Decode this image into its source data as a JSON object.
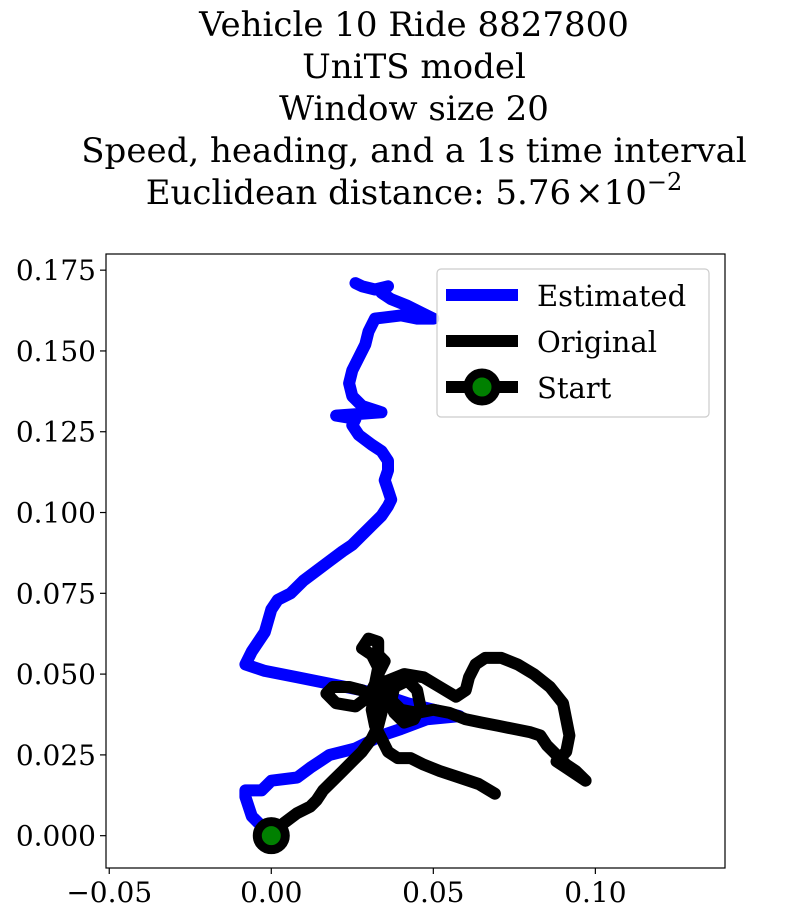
{
  "chart_data": {
    "type": "line",
    "title_lines": [
      "Vehicle 10 Ride 8827800",
      "UniTS model",
      "Window size 20",
      "Speed, heading, and a 1s time interval"
    ],
    "title_metric_label": "Euclidean distance: 5.76",
    "title_metric_times": "×10",
    "title_metric_exponent": "−2",
    "xlabel": "",
    "ylabel": "",
    "xlim": [
      -0.051,
      0.14
    ],
    "ylim": [
      -0.01,
      0.18
    ],
    "x_ticks": [
      -0.05,
      0.0,
      0.05,
      0.1
    ],
    "x_tick_labels": [
      "−0.05",
      "0.00",
      "0.05",
      "0.10"
    ],
    "y_ticks": [
      0.0,
      0.025,
      0.05,
      0.075,
      0.1,
      0.125,
      0.15,
      0.175
    ],
    "y_tick_labels": [
      "0.000",
      "0.025",
      "0.050",
      "0.075",
      "0.100",
      "0.125",
      "0.150",
      "0.175"
    ],
    "grid": false,
    "legend_position": "top-right",
    "series": [
      {
        "name": "Estimated",
        "color": "#0000ff",
        "points": [
          [
            0.0,
            0.0
          ],
          [
            -0.006,
            0.006
          ],
          [
            -0.008,
            0.012
          ],
          [
            -0.008,
            0.014
          ],
          [
            -0.003,
            0.014
          ],
          [
            0.0,
            0.017
          ],
          [
            0.008,
            0.018
          ],
          [
            0.012,
            0.021
          ],
          [
            0.015,
            0.023
          ],
          [
            0.018,
            0.025
          ],
          [
            0.022,
            0.026
          ],
          [
            0.026,
            0.027
          ],
          [
            0.03,
            0.029
          ],
          [
            0.034,
            0.031
          ],
          [
            0.04,
            0.033
          ],
          [
            0.048,
            0.036
          ],
          [
            0.058,
            0.037
          ],
          [
            0.05,
            0.039
          ],
          [
            0.042,
            0.041
          ],
          [
            0.036,
            0.043
          ],
          [
            0.028,
            0.045
          ],
          [
            0.018,
            0.047
          ],
          [
            0.008,
            0.049
          ],
          [
            -0.002,
            0.051
          ],
          [
            -0.008,
            0.053
          ],
          [
            -0.006,
            0.057
          ],
          [
            -0.002,
            0.063
          ],
          [
            0.0,
            0.07
          ],
          [
            0.002,
            0.073
          ],
          [
            0.006,
            0.075
          ],
          [
            0.01,
            0.079
          ],
          [
            0.014,
            0.082
          ],
          [
            0.018,
            0.085
          ],
          [
            0.022,
            0.088
          ],
          [
            0.025,
            0.09
          ],
          [
            0.028,
            0.093
          ],
          [
            0.031,
            0.096
          ],
          [
            0.034,
            0.099
          ],
          [
            0.036,
            0.102
          ],
          [
            0.037,
            0.104
          ],
          [
            0.036,
            0.107
          ],
          [
            0.035,
            0.11
          ],
          [
            0.036,
            0.113
          ],
          [
            0.036,
            0.116
          ],
          [
            0.034,
            0.119
          ],
          [
            0.031,
            0.121
          ],
          [
            0.027,
            0.124
          ],
          [
            0.025,
            0.127
          ],
          [
            0.026,
            0.129
          ],
          [
            0.02,
            0.13
          ],
          [
            0.034,
            0.131
          ],
          [
            0.028,
            0.133
          ],
          [
            0.025,
            0.136
          ],
          [
            0.024,
            0.14
          ],
          [
            0.025,
            0.144
          ],
          [
            0.027,
            0.148
          ],
          [
            0.029,
            0.152
          ],
          [
            0.03,
            0.156
          ],
          [
            0.032,
            0.16
          ],
          [
            0.04,
            0.161
          ],
          [
            0.045,
            0.16
          ],
          [
            0.05,
            0.16
          ],
          [
            0.046,
            0.162
          ],
          [
            0.042,
            0.164
          ],
          [
            0.037,
            0.166
          ],
          [
            0.034,
            0.168
          ],
          [
            0.036,
            0.17
          ],
          [
            0.032,
            0.169
          ],
          [
            0.028,
            0.17
          ],
          [
            0.026,
            0.171
          ]
        ]
      },
      {
        "name": "Original",
        "color": "#000000",
        "points": [
          [
            0.0,
            0.0
          ],
          [
            0.004,
            0.004
          ],
          [
            0.008,
            0.007
          ],
          [
            0.012,
            0.009
          ],
          [
            0.014,
            0.011
          ],
          [
            0.016,
            0.014
          ],
          [
            0.019,
            0.017
          ],
          [
            0.022,
            0.02
          ],
          [
            0.025,
            0.023
          ],
          [
            0.028,
            0.026
          ],
          [
            0.031,
            0.03
          ],
          [
            0.033,
            0.034
          ],
          [
            0.034,
            0.038
          ],
          [
            0.032,
            0.042
          ],
          [
            0.028,
            0.045
          ],
          [
            0.024,
            0.046
          ],
          [
            0.019,
            0.046
          ],
          [
            0.017,
            0.044
          ],
          [
            0.02,
            0.041
          ],
          [
            0.026,
            0.04
          ],
          [
            0.03,
            0.043
          ],
          [
            0.032,
            0.047
          ],
          [
            0.033,
            0.052
          ],
          [
            0.031,
            0.056
          ],
          [
            0.028,
            0.058
          ],
          [
            0.03,
            0.061
          ],
          [
            0.033,
            0.06
          ],
          [
            0.033,
            0.056
          ],
          [
            0.035,
            0.054
          ],
          [
            0.033,
            0.05
          ],
          [
            0.034,
            0.046
          ],
          [
            0.036,
            0.042
          ],
          [
            0.038,
            0.038
          ],
          [
            0.041,
            0.035
          ],
          [
            0.044,
            0.036
          ],
          [
            0.046,
            0.04
          ],
          [
            0.045,
            0.045
          ],
          [
            0.042,
            0.048
          ],
          [
            0.038,
            0.046
          ],
          [
            0.037,
            0.042
          ],
          [
            0.04,
            0.039
          ],
          [
            0.045,
            0.038
          ],
          [
            0.05,
            0.039
          ],
          [
            0.055,
            0.038
          ],
          [
            0.06,
            0.036
          ],
          [
            0.065,
            0.035
          ],
          [
            0.07,
            0.034
          ],
          [
            0.075,
            0.033
          ],
          [
            0.08,
            0.032
          ],
          [
            0.083,
            0.031
          ],
          [
            0.085,
            0.028
          ],
          [
            0.088,
            0.025
          ],
          [
            0.091,
            0.022
          ],
          [
            0.094,
            0.02
          ],
          [
            0.097,
            0.017
          ],
          [
            0.094,
            0.019
          ],
          [
            0.091,
            0.021
          ],
          [
            0.088,
            0.023
          ],
          [
            0.091,
            0.026
          ],
          [
            0.092,
            0.031
          ],
          [
            0.091,
            0.036
          ],
          [
            0.09,
            0.041
          ],
          [
            0.086,
            0.046
          ],
          [
            0.081,
            0.05
          ],
          [
            0.076,
            0.053
          ],
          [
            0.071,
            0.055
          ],
          [
            0.066,
            0.055
          ],
          [
            0.063,
            0.053
          ],
          [
            0.061,
            0.049
          ],
          [
            0.06,
            0.045
          ],
          [
            0.057,
            0.043
          ],
          [
            0.052,
            0.046
          ],
          [
            0.047,
            0.049
          ],
          [
            0.041,
            0.05
          ],
          [
            0.036,
            0.048
          ],
          [
            0.032,
            0.044
          ],
          [
            0.031,
            0.039
          ],
          [
            0.032,
            0.034
          ],
          [
            0.034,
            0.03
          ],
          [
            0.036,
            0.026
          ],
          [
            0.039,
            0.024
          ],
          [
            0.043,
            0.024
          ],
          [
            0.047,
            0.022
          ],
          [
            0.052,
            0.02
          ],
          [
            0.058,
            0.018
          ],
          [
            0.064,
            0.016
          ],
          [
            0.069,
            0.013
          ]
        ]
      },
      {
        "name": "Start",
        "color": "#000000",
        "marker_face": "#008000",
        "points": [
          [
            0.0,
            0.0
          ]
        ]
      }
    ]
  }
}
